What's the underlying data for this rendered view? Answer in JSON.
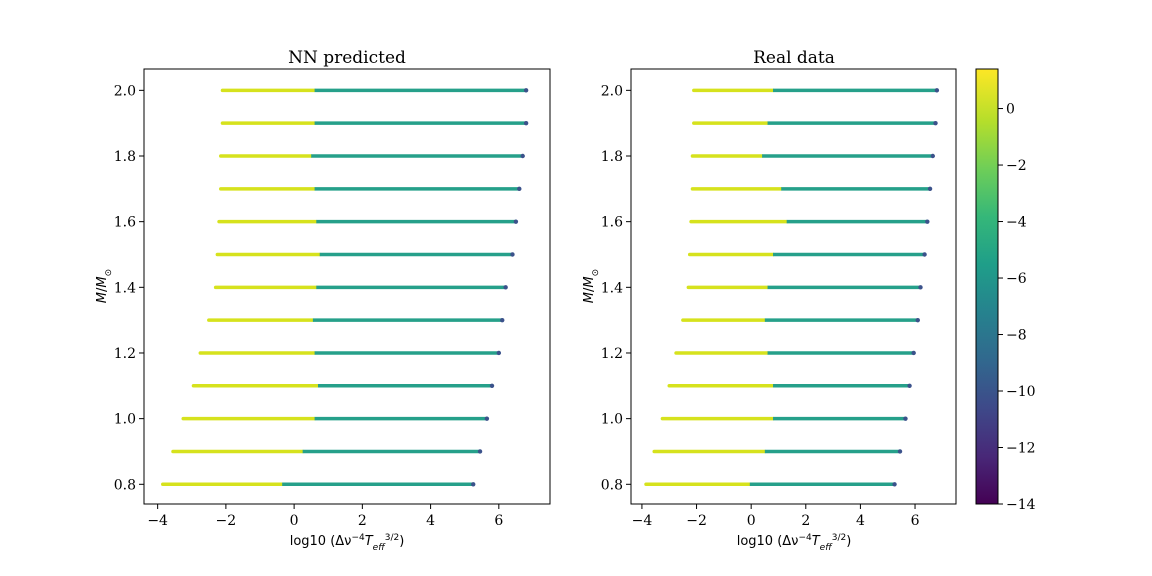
{
  "chart_data": [
    {
      "type": "scatter",
      "title": "NN predicted",
      "xlabel": "log10 (Δν⁻⁴T_eff^3/2)",
      "ylabel": "M/M_⊙",
      "xlim": [
        -4.4,
        7.5
      ],
      "ylim": [
        0.74,
        2.065
      ],
      "xticks": [
        -4,
        -2,
        0,
        2,
        4,
        6
      ],
      "yticks": [
        0.8,
        1.0,
        1.2,
        1.4,
        1.6,
        1.8,
        2.0
      ],
      "xtick_labels": [
        "−4",
        "−2",
        "0",
        "2",
        "4",
        "6"
      ],
      "ytick_labels": [
        "0.8",
        "1.0",
        "1.2",
        "1.4",
        "1.6",
        "1.8",
        "2.0"
      ],
      "color_variable": "colorbar value",
      "tracks": [
        {
          "mass": 2.0,
          "x_start": -2.1,
          "x_mid": 0.6,
          "x_end": 6.8
        },
        {
          "mass": 1.9,
          "x_start": -2.1,
          "x_mid": 0.6,
          "x_end": 6.8
        },
        {
          "mass": 1.8,
          "x_start": -2.15,
          "x_mid": 0.5,
          "x_end": 6.7
        },
        {
          "mass": 1.7,
          "x_start": -2.15,
          "x_mid": 0.6,
          "x_end": 6.6
        },
        {
          "mass": 1.6,
          "x_start": -2.2,
          "x_mid": 0.65,
          "x_end": 6.5
        },
        {
          "mass": 1.5,
          "x_start": -2.25,
          "x_mid": 0.75,
          "x_end": 6.4
        },
        {
          "mass": 1.4,
          "x_start": -2.3,
          "x_mid": 0.65,
          "x_end": 6.2
        },
        {
          "mass": 1.3,
          "x_start": -2.5,
          "x_mid": 0.55,
          "x_end": 6.1
        },
        {
          "mass": 1.2,
          "x_start": -2.75,
          "x_mid": 0.6,
          "x_end": 6.0
        },
        {
          "mass": 1.1,
          "x_start": -2.95,
          "x_mid": 0.7,
          "x_end": 5.8
        },
        {
          "mass": 1.0,
          "x_start": -3.25,
          "x_mid": 0.6,
          "x_end": 5.65
        },
        {
          "mass": 0.9,
          "x_start": -3.55,
          "x_mid": 0.25,
          "x_end": 5.45
        },
        {
          "mass": 0.8,
          "x_start": -3.85,
          "x_mid": -0.35,
          "x_end": 5.25
        }
      ]
    },
    {
      "type": "scatter",
      "title": "Real data",
      "xlabel": "log10 (Δν⁻⁴T_eff^3/2)",
      "ylabel": "M/M_⊙",
      "xlim": [
        -4.4,
        7.5
      ],
      "ylim": [
        0.74,
        2.065
      ],
      "xticks": [
        -4,
        -2,
        0,
        2,
        4,
        6
      ],
      "yticks": [
        0.8,
        1.0,
        1.2,
        1.4,
        1.6,
        1.8,
        2.0
      ],
      "xtick_labels": [
        "−4",
        "−2",
        "0",
        "2",
        "4",
        "6"
      ],
      "ytick_labels": [
        "0.8",
        "1.0",
        "1.2",
        "1.4",
        "1.6",
        "1.8",
        "2.0"
      ],
      "color_variable": "colorbar value",
      "tracks": [
        {
          "mass": 2.0,
          "x_start": -2.1,
          "x_mid": 0.8,
          "x_end": 6.8
        },
        {
          "mass": 1.9,
          "x_start": -2.1,
          "x_mid": 0.6,
          "x_end": 6.75
        },
        {
          "mass": 1.8,
          "x_start": -2.15,
          "x_mid": 0.4,
          "x_end": 6.65
        },
        {
          "mass": 1.7,
          "x_start": -2.15,
          "x_mid": 1.1,
          "x_end": 6.55
        },
        {
          "mass": 1.6,
          "x_start": -2.2,
          "x_mid": 1.3,
          "x_end": 6.45
        },
        {
          "mass": 1.5,
          "x_start": -2.25,
          "x_mid": 0.8,
          "x_end": 6.35
        },
        {
          "mass": 1.4,
          "x_start": -2.3,
          "x_mid": 0.6,
          "x_end": 6.2
        },
        {
          "mass": 1.3,
          "x_start": -2.5,
          "x_mid": 0.5,
          "x_end": 6.1
        },
        {
          "mass": 1.2,
          "x_start": -2.75,
          "x_mid": 0.6,
          "x_end": 5.95
        },
        {
          "mass": 1.1,
          "x_start": -3.0,
          "x_mid": 0.8,
          "x_end": 5.8
        },
        {
          "mass": 1.0,
          "x_start": -3.25,
          "x_mid": 0.8,
          "x_end": 5.65
        },
        {
          "mass": 0.9,
          "x_start": -3.55,
          "x_mid": 0.5,
          "x_end": 5.45
        },
        {
          "mass": 0.8,
          "x_start": -3.85,
          "x_mid": -0.05,
          "x_end": 5.25
        }
      ]
    }
  ],
  "colorbar": {
    "min": -14,
    "max": 1.4,
    "ticks": [
      0,
      -2,
      -4,
      -6,
      -8,
      -10,
      -12,
      -14
    ],
    "tick_labels": [
      "0",
      "−2",
      "−4",
      "−6",
      "−8",
      "−10",
      "−12",
      "−14"
    ],
    "colormap": "viridis",
    "stops": [
      "#440154",
      "#482878",
      "#3e4989",
      "#31688e",
      "#26828e",
      "#1f9e89",
      "#35b779",
      "#6ece58",
      "#b5de2b",
      "#fde725"
    ]
  },
  "colors": {
    "early_segment": "#d6e21d",
    "late_segment": "#26a08a",
    "end_point": "#3b528b",
    "axis": "#000000",
    "background": "#ffffff"
  }
}
